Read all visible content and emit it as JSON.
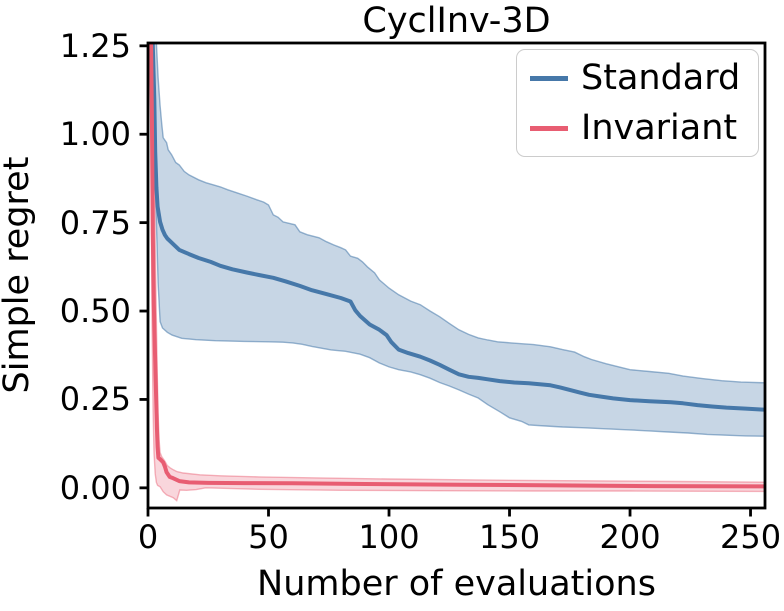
{
  "chart_data": {
    "type": "line",
    "title": "CyclInv-3D",
    "xlabel": "Number of evaluations",
    "ylabel": "Simple regret",
    "xlim": [
      0,
      256
    ],
    "ylim": [
      -0.057,
      1.258
    ],
    "grid": false,
    "legend_position": "upper right",
    "frame_color": "#000000",
    "xticks": {
      "values": [
        0,
        50,
        100,
        150,
        200,
        250
      ],
      "labels": [
        "0",
        "50",
        "100",
        "150",
        "200",
        "250"
      ]
    },
    "yticks": {
      "values": [
        0.0,
        0.25,
        0.5,
        0.75,
        1.0,
        1.25
      ],
      "labels": [
        "0.00",
        "0.25",
        "0.50",
        "0.75",
        "1.00",
        "1.25"
      ]
    },
    "series": [
      {
        "name": "Standard",
        "color": "#4678a9",
        "band_fill": "rgba(70,120,169,0.30)",
        "band_edge": "rgba(70,120,169,0.55)",
        "line": [
          [
            0,
            1.3
          ],
          [
            1.8,
            1.3
          ],
          [
            2.6,
            1.1
          ],
          [
            3,
            0.95
          ],
          [
            3.5,
            0.85
          ],
          [
            4,
            0.795
          ],
          [
            5,
            0.752
          ],
          [
            6,
            0.73
          ],
          [
            7,
            0.715
          ],
          [
            8,
            0.705
          ],
          [
            10,
            0.692
          ],
          [
            13,
            0.673
          ],
          [
            17,
            0.661
          ],
          [
            21,
            0.65
          ],
          [
            26,
            0.639
          ],
          [
            30,
            0.628
          ],
          [
            35,
            0.618
          ],
          [
            41,
            0.609
          ],
          [
            46,
            0.602
          ],
          [
            52,
            0.594
          ],
          [
            57,
            0.584
          ],
          [
            63,
            0.571
          ],
          [
            68,
            0.559
          ],
          [
            74,
            0.548
          ],
          [
            80,
            0.537
          ],
          [
            84,
            0.527
          ],
          [
            86,
            0.502
          ],
          [
            88,
            0.486
          ],
          [
            92,
            0.462
          ],
          [
            96,
            0.447
          ],
          [
            99,
            0.432
          ],
          [
            101,
            0.412
          ],
          [
            104,
            0.391
          ],
          [
            108,
            0.381
          ],
          [
            113,
            0.371
          ],
          [
            117,
            0.36
          ],
          [
            121,
            0.348
          ],
          [
            125,
            0.334
          ],
          [
            129,
            0.321
          ],
          [
            133,
            0.314
          ],
          [
            137,
            0.311
          ],
          [
            141,
            0.307
          ],
          [
            146,
            0.302
          ],
          [
            152,
            0.298
          ],
          [
            158,
            0.296
          ],
          [
            167,
            0.29
          ],
          [
            171,
            0.284
          ],
          [
            175,
            0.277
          ],
          [
            179,
            0.27
          ],
          [
            183,
            0.263
          ],
          [
            188,
            0.258
          ],
          [
            193,
            0.253
          ],
          [
            200,
            0.248
          ],
          [
            208,
            0.245
          ],
          [
            217,
            0.242
          ],
          [
            222,
            0.239
          ],
          [
            228,
            0.234
          ],
          [
            234,
            0.23
          ],
          [
            240,
            0.227
          ],
          [
            248,
            0.224
          ],
          [
            256,
            0.221
          ]
        ],
        "band_upper": [
          [
            0,
            1.3
          ],
          [
            3.2,
            1.3
          ],
          [
            3.6,
            1.24
          ],
          [
            4.2,
            1.16
          ],
          [
            5,
            1.08
          ],
          [
            5.7,
            1.03
          ],
          [
            6.3,
            0.99
          ],
          [
            7.7,
            0.976
          ],
          [
            8.4,
            0.956
          ],
          [
            9.8,
            0.942
          ],
          [
            11.5,
            0.92
          ],
          [
            13,
            0.913
          ],
          [
            15,
            0.895
          ],
          [
            17,
            0.885
          ],
          [
            21,
            0.871
          ],
          [
            24,
            0.863
          ],
          [
            27,
            0.857
          ],
          [
            30,
            0.851
          ],
          [
            33,
            0.843
          ],
          [
            37,
            0.834
          ],
          [
            41,
            0.825
          ],
          [
            45,
            0.815
          ],
          [
            48,
            0.808
          ],
          [
            50,
            0.8
          ],
          [
            52,
            0.772
          ],
          [
            54,
            0.765
          ],
          [
            56,
            0.752
          ],
          [
            61,
            0.744
          ],
          [
            63,
            0.724
          ],
          [
            66,
            0.716
          ],
          [
            71,
            0.707
          ],
          [
            74,
            0.696
          ],
          [
            77,
            0.687
          ],
          [
            80,
            0.679
          ],
          [
            82,
            0.673
          ],
          [
            84,
            0.655
          ],
          [
            87,
            0.649
          ],
          [
            89,
            0.639
          ],
          [
            91,
            0.625
          ],
          [
            94,
            0.608
          ],
          [
            96,
            0.588
          ],
          [
            100,
            0.565
          ],
          [
            104,
            0.546
          ],
          [
            109,
            0.528
          ],
          [
            113,
            0.518
          ],
          [
            117,
            0.5
          ],
          [
            121,
            0.484
          ],
          [
            125,
            0.465
          ],
          [
            129,
            0.447
          ],
          [
            133,
            0.434
          ],
          [
            137,
            0.424
          ],
          [
            141,
            0.418
          ],
          [
            145,
            0.413
          ],
          [
            152,
            0.409
          ],
          [
            160,
            0.405
          ],
          [
            167,
            0.399
          ],
          [
            172,
            0.391
          ],
          [
            177,
            0.384
          ],
          [
            181,
            0.371
          ],
          [
            184,
            0.363
          ],
          [
            190,
            0.351
          ],
          [
            196,
            0.341
          ],
          [
            200,
            0.334
          ],
          [
            208,
            0.329
          ],
          [
            216,
            0.324
          ],
          [
            222,
            0.316
          ],
          [
            230,
            0.309
          ],
          [
            238,
            0.303
          ],
          [
            246,
            0.299
          ],
          [
            256,
            0.297
          ]
        ],
        "band_lower": [
          [
            0,
            1.3
          ],
          [
            2,
            1.18
          ],
          [
            2.6,
            1.02
          ],
          [
            3,
            0.88
          ],
          [
            3.6,
            0.72
          ],
          [
            4.2,
            0.58
          ],
          [
            5,
            0.47
          ],
          [
            6,
            0.452
          ],
          [
            8,
            0.44
          ],
          [
            10,
            0.432
          ],
          [
            14,
            0.423
          ],
          [
            20,
            0.419
          ],
          [
            28,
            0.416
          ],
          [
            40,
            0.414
          ],
          [
            50,
            0.413
          ],
          [
            56,
            0.412
          ],
          [
            60,
            0.41
          ],
          [
            64,
            0.406
          ],
          [
            68,
            0.4
          ],
          [
            72,
            0.395
          ],
          [
            76,
            0.39
          ],
          [
            82,
            0.386
          ],
          [
            88,
            0.378
          ],
          [
            92,
            0.368
          ],
          [
            96,
            0.353
          ],
          [
            100,
            0.342
          ],
          [
            104,
            0.334
          ],
          [
            109,
            0.328
          ],
          [
            113,
            0.32
          ],
          [
            117,
            0.31
          ],
          [
            121,
            0.298
          ],
          [
            125,
            0.288
          ],
          [
            129,
            0.277
          ],
          [
            133,
            0.265
          ],
          [
            137,
            0.254
          ],
          [
            141,
            0.235
          ],
          [
            146,
            0.215
          ],
          [
            150,
            0.198
          ],
          [
            155,
            0.188
          ],
          [
            158,
            0.178
          ],
          [
            165,
            0.175
          ],
          [
            172,
            0.172
          ],
          [
            180,
            0.17
          ],
          [
            190,
            0.167
          ],
          [
            200,
            0.164
          ],
          [
            208,
            0.161
          ],
          [
            216,
            0.158
          ],
          [
            224,
            0.155
          ],
          [
            232,
            0.151
          ],
          [
            240,
            0.149
          ],
          [
            248,
            0.147
          ],
          [
            256,
            0.146
          ]
        ]
      },
      {
        "name": "Invariant",
        "color": "#e85d72",
        "band_fill": "rgba(232,93,114,0.25)",
        "band_edge": "rgba(232,93,114,0.45)",
        "line": [
          [
            0,
            1.3
          ],
          [
            1.2,
            1.3
          ],
          [
            1.6,
            1.05
          ],
          [
            2,
            0.72
          ],
          [
            2.4,
            0.52
          ],
          [
            2.9,
            0.38
          ],
          [
            3.3,
            0.27
          ],
          [
            3.7,
            0.17
          ],
          [
            4,
            0.115
          ],
          [
            4.3,
            0.085
          ],
          [
            5,
            0.081
          ],
          [
            6.3,
            0.072
          ],
          [
            7,
            0.06
          ],
          [
            7.7,
            0.044
          ],
          [
            9,
            0.031
          ],
          [
            10.5,
            0.027
          ],
          [
            13,
            0.019
          ],
          [
            17,
            0.0155
          ],
          [
            25,
            0.014
          ],
          [
            40,
            0.0135
          ],
          [
            60,
            0.013
          ],
          [
            90,
            0.011
          ],
          [
            130,
            0.009
          ],
          [
            170,
            0.007
          ],
          [
            210,
            0.005
          ],
          [
            256,
            0.004
          ]
        ],
        "band_upper": [
          [
            0,
            1.3
          ],
          [
            2.2,
            1.3
          ],
          [
            2.6,
            0.95
          ],
          [
            3,
            0.7
          ],
          [
            3.4,
            0.5
          ],
          [
            3.8,
            0.33
          ],
          [
            4.2,
            0.21
          ],
          [
            4.6,
            0.135
          ],
          [
            5,
            0.1
          ],
          [
            5.7,
            0.088
          ],
          [
            7,
            0.075
          ],
          [
            8,
            0.063
          ],
          [
            9.1,
            0.057
          ],
          [
            10.5,
            0.051
          ],
          [
            12,
            0.046
          ],
          [
            14.6,
            0.042
          ],
          [
            21.5,
            0.037
          ],
          [
            30,
            0.034
          ],
          [
            46,
            0.031
          ],
          [
            70,
            0.028
          ],
          [
            100,
            0.025
          ],
          [
            140,
            0.022
          ],
          [
            180,
            0.02
          ],
          [
            220,
            0.018
          ],
          [
            256,
            0.016
          ]
        ],
        "band_lower": [
          [
            0,
            1.3
          ],
          [
            1.0,
            1.25
          ],
          [
            1.3,
            0.85
          ],
          [
            1.7,
            0.45
          ],
          [
            2.1,
            0.22
          ],
          [
            2.5,
            0.1
          ],
          [
            3,
            0.04
          ],
          [
            3.5,
            0.015
          ],
          [
            4,
            0.007
          ],
          [
            5,
            0.003
          ],
          [
            6.3,
            -0.011
          ],
          [
            7.7,
            -0.02
          ],
          [
            10.5,
            -0.028
          ],
          [
            11.9,
            -0.036
          ],
          [
            12.6,
            -0.02
          ],
          [
            13.2,
            -0.006
          ],
          [
            16,
            -0.007
          ],
          [
            20,
            -0.005
          ],
          [
            24,
            0.0
          ],
          [
            46,
            -0.004
          ],
          [
            80,
            -0.007
          ],
          [
            120,
            -0.008
          ],
          [
            160,
            -0.009
          ],
          [
            200,
            -0.009
          ],
          [
            256,
            -0.01
          ]
        ]
      }
    ]
  }
}
